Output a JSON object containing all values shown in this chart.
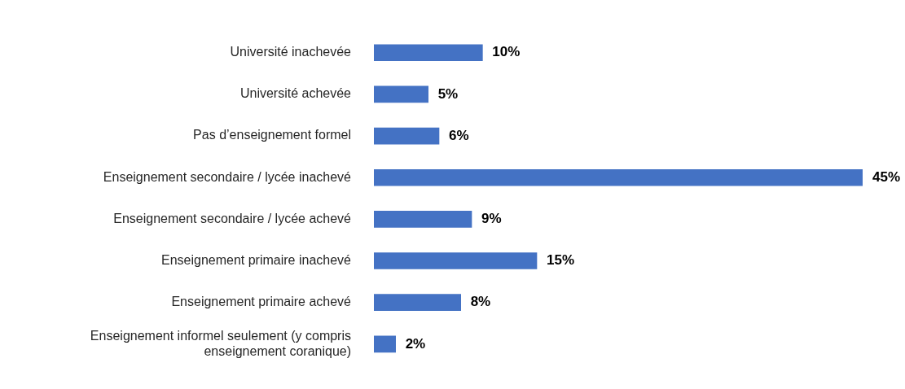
{
  "chart_data": {
    "type": "bar",
    "orientation": "horizontal",
    "categories": [
      "Université inachevée",
      "Université achevée",
      "Pas d’enseignement formel",
      "Enseignement secondaire / lycée inachevé",
      "Enseignement secondaire / lycée achevé",
      "Enseignement primaire inachevé",
      "Enseignement primaire achevé",
      "Enseignement informel seulement (y compris enseignement coranique)"
    ],
    "values": [
      10,
      5,
      6,
      45,
      9,
      15,
      8,
      2
    ],
    "value_labels": [
      "10%",
      "5%",
      "6%",
      "45%",
      "9%",
      "15%",
      "8%",
      "2%"
    ],
    "color": "#4472c4",
    "legend": false
  }
}
